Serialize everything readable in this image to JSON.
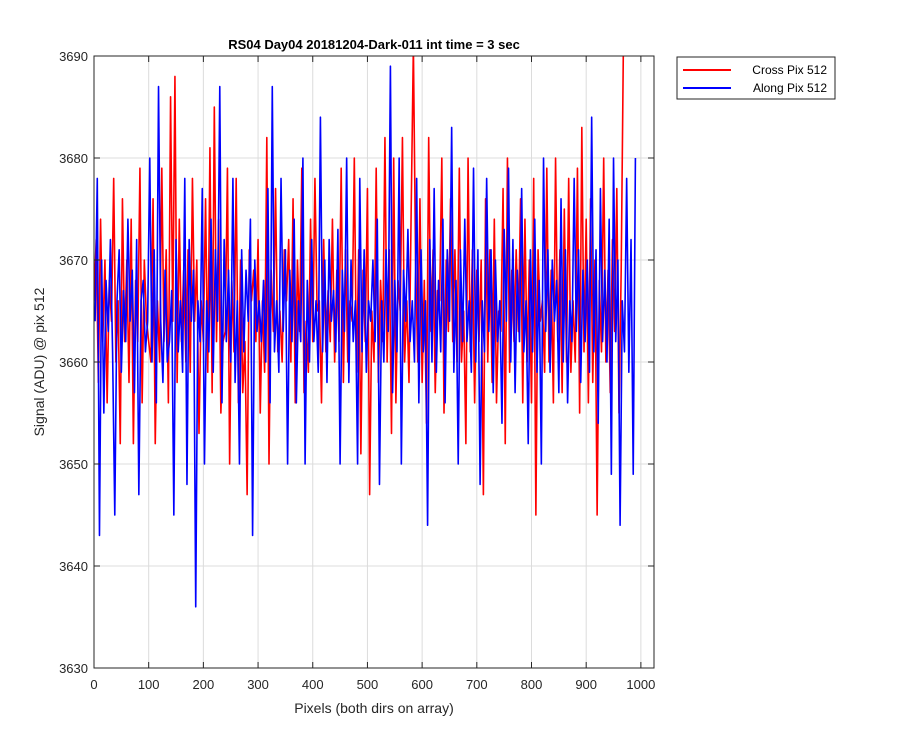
{
  "chart_data": {
    "type": "line",
    "title": "RS04 Day04 20181204-Dark-011 int time = 3 sec",
    "xlabel": "Pixels (both dirs on array)",
    "ylabel": "Signal (ADU) @ pix 512",
    "xlim": [
      0,
      1024
    ],
    "ylim": [
      3630,
      3690
    ],
    "xticks": [
      0,
      100,
      200,
      300,
      400,
      500,
      600,
      700,
      800,
      900,
      1000
    ],
    "yticks": [
      3630,
      3640,
      3650,
      3660,
      3670,
      3680,
      3690
    ],
    "grid": true,
    "legend_position": "outside-top-right",
    "series": [
      {
        "name": "Cross Pix 512",
        "color": "#ff0000",
        "x_start": 0,
        "x_step": 4,
        "y": [
          3666,
          3672,
          3658,
          3674,
          3662,
          3670,
          3656,
          3668,
          3664,
          3678,
          3660,
          3666,
          3652,
          3676,
          3662,
          3670,
          3658,
          3674,
          3652,
          3668,
          3662,
          3679,
          3656,
          3670,
          3664,
          3662,
          3660,
          3676,
          3652,
          3666,
          3660,
          3679,
          3662,
          3671,
          3656,
          3686,
          3664,
          3688,
          3658,
          3674,
          3662,
          3669,
          3660,
          3671,
          3659,
          3678,
          3664,
          3670,
          3653,
          3666,
          3662,
          3676,
          3659,
          3681,
          3657,
          3685,
          3662,
          3674,
          3655,
          3662,
          3663,
          3679,
          3650,
          3668,
          3661,
          3678,
          3656,
          3670,
          3657,
          3662,
          3647,
          3671,
          3666,
          3669,
          3662,
          3672,
          3655,
          3666,
          3659,
          3682,
          3650,
          3669,
          3663,
          3677,
          3661,
          3665,
          3660,
          3671,
          3666,
          3672,
          3660,
          3676,
          3656,
          3670,
          3663,
          3679,
          3657,
          3664,
          3659,
          3674,
          3662,
          3678,
          3665,
          3666,
          3656,
          3672,
          3661,
          3667,
          3662,
          3674,
          3660,
          3669,
          3662,
          3679,
          3658,
          3671,
          3660,
          3666,
          3664,
          3680,
          3659,
          3671,
          3651,
          3669,
          3662,
          3677,
          3647,
          3665,
          3660,
          3679,
          3658,
          3668,
          3662,
          3682,
          3660,
          3671,
          3653,
          3680,
          3656,
          3668,
          3665,
          3682,
          3660,
          3666,
          3658,
          3675,
          3691,
          3670,
          3660,
          3676,
          3658,
          3668,
          3654,
          3682,
          3663,
          3671,
          3657,
          3667,
          3666,
          3680,
          3655,
          3670,
          3663,
          3676,
          3662,
          3671,
          3660,
          3679,
          3660,
          3665,
          3652,
          3680,
          3661,
          3671,
          3656,
          3669,
          3662,
          3670,
          3647,
          3676,
          3660,
          3671,
          3658,
          3674,
          3656,
          3665,
          3663,
          3677,
          3652,
          3680,
          3659,
          3669,
          3662,
          3671,
          3663,
          3676,
          3656,
          3674,
          3660,
          3670,
          3656,
          3678,
          3645,
          3671,
          3664,
          3666,
          3659,
          3679,
          3660,
          3669,
          3656,
          3680,
          3662,
          3671,
          3657,
          3675,
          3660,
          3678,
          3659,
          3666,
          3660,
          3679,
          3655,
          3683,
          3661,
          3674,
          3656,
          3676,
          3658,
          3670,
          3645,
          3668,
          3661,
          3680,
          3660,
          3669,
          3657,
          3672,
          3663,
          3677,
          3655,
          3669,
          3691
        ]
      },
      {
        "name": "Along Pix 512",
        "color": "#0000ff",
        "x_start": 2,
        "x_step": 4,
        "y": [
          3664,
          3678,
          3643,
          3670,
          3655,
          3668,
          3663,
          3672,
          3661,
          3645,
          3666,
          3671,
          3659,
          3667,
          3662,
          3674,
          3664,
          3669,
          3657,
          3672,
          3647,
          3666,
          3668,
          3661,
          3664,
          3680,
          3660,
          3671,
          3656,
          3687,
          3664,
          3658,
          3669,
          3660,
          3662,
          3667,
          3645,
          3672,
          3661,
          3666,
          3659,
          3678,
          3648,
          3672,
          3664,
          3669,
          3636,
          3666,
          3662,
          3677,
          3650,
          3666,
          3661,
          3674,
          3659,
          3671,
          3664,
          3687,
          3656,
          3672,
          3662,
          3669,
          3660,
          3678,
          3658,
          3666,
          3650,
          3671,
          3661,
          3669,
          3664,
          3674,
          3643,
          3670,
          3663,
          3666,
          3662,
          3668,
          3660,
          3677,
          3656,
          3687,
          3661,
          3666,
          3659,
          3678,
          3663,
          3671,
          3650,
          3669,
          3662,
          3674,
          3656,
          3666,
          3662,
          3680,
          3650,
          3668,
          3660,
          3672,
          3662,
          3666,
          3659,
          3684,
          3661,
          3670,
          3658,
          3672,
          3664,
          3667,
          3661,
          3673,
          3650,
          3669,
          3663,
          3680,
          3658,
          3670,
          3662,
          3666,
          3650,
          3678,
          3661,
          3671,
          3659,
          3666,
          3664,
          3670,
          3662,
          3674,
          3648,
          3666,
          3660,
          3671,
          3663,
          3689,
          3657,
          3668,
          3661,
          3680,
          3650,
          3669,
          3664,
          3673,
          3662,
          3666,
          3660,
          3678,
          3656,
          3671,
          3661,
          3666,
          3644,
          3672,
          3660,
          3677,
          3659,
          3668,
          3661,
          3674,
          3656,
          3671,
          3664,
          3683,
          3659,
          3668,
          3650,
          3671,
          3662,
          3674,
          3662,
          3666,
          3659,
          3679,
          3660,
          3671,
          3648,
          3666,
          3661,
          3678,
          3663,
          3671,
          3657,
          3670,
          3662,
          3666,
          3654,
          3673,
          3664,
          3679,
          3660,
          3672,
          3657,
          3669,
          3662,
          3677,
          3661,
          3666,
          3652,
          3671,
          3661,
          3674,
          3659,
          3668,
          3650,
          3680,
          3663,
          3671,
          3659,
          3670,
          3664,
          3668,
          3657,
          3676,
          3660,
          3671,
          3656,
          3666,
          3662,
          3678,
          3663,
          3671,
          3658,
          3669,
          3662,
          3670,
          3659,
          3684,
          3661,
          3671,
          3654,
          3677,
          3662,
          3669,
          3660,
          3674,
          3649,
          3680,
          3662,
          3670,
          3644,
          3666,
          3661,
          3678,
          3659,
          3672,
          3649,
          3680
        ]
      }
    ]
  }
}
